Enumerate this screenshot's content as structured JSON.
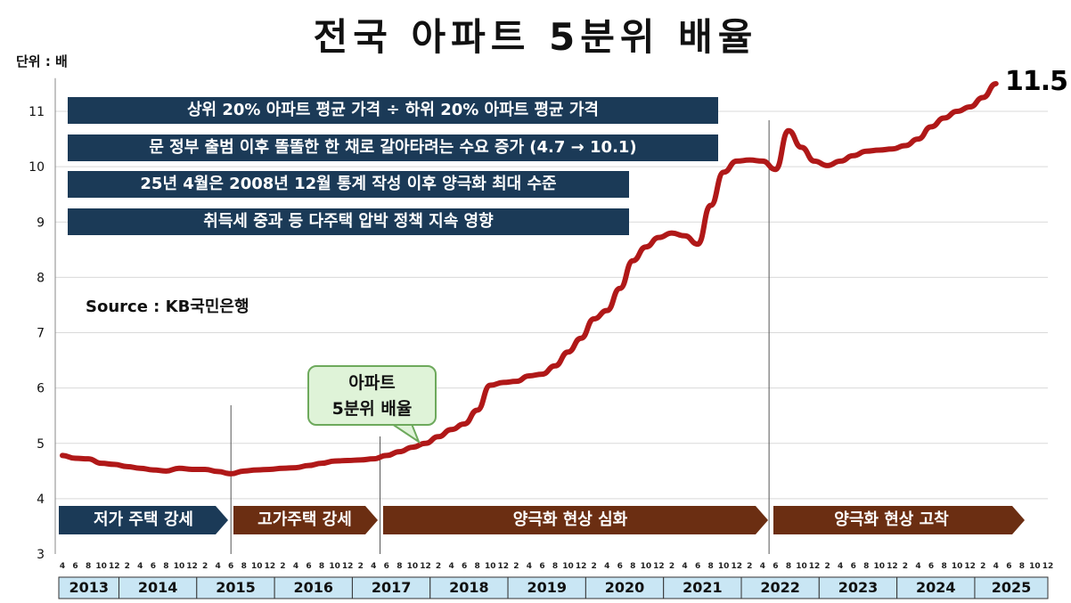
{
  "title": "전국 아파트 5분위 배율",
  "unit_label": "단위 : 배",
  "info_lines": [
    "상위 20% 아파트 평균 가격 ÷ 하위 20% 아파트 평균 가격",
    "문 정부 출범 이후 똘똘한 한 채로 갈아타려는 수요 증가 (4.7 → 10.1)",
    "25년 4월은 2008년 12월 통계 작성 이후 양극화 최대 수준",
    "취득세 중과 등 다주택 압박 정책 지속 영향"
  ],
  "source": "Source  : KB국민은행",
  "callout": {
    "line1": "아파트",
    "line2": "5분위 배율"
  },
  "end_value_label": "11.5",
  "phases": [
    {
      "label": "저가 주택 강세",
      "color": "#1b3a57"
    },
    {
      "label": "고가주택 강세",
      "color": "#6b2e12"
    },
    {
      "label": "양극화 현상 심화",
      "color": "#6b2e12"
    },
    {
      "label": "양극화 현상 고착",
      "color": "#6b2e12"
    }
  ],
  "colors": {
    "line": "#b01818",
    "info_bg": "#1b3a57",
    "year_bg": "#c9e6f4",
    "grid": "#d9d9d9"
  },
  "chart_data": {
    "type": "line",
    "title": "전국 아파트 5분위 배율",
    "ylabel": "단위 : 배",
    "ylim": [
      3,
      11.5
    ],
    "yticks": [
      3,
      4,
      5,
      6,
      7,
      8,
      9,
      10,
      11
    ],
    "x_month_ticks": [
      "4",
      "6",
      "8",
      "10",
      "12",
      "2",
      "4",
      "6",
      "8",
      "10",
      "12",
      "2",
      "4",
      "6",
      "8",
      "10",
      "12",
      "2",
      "4",
      "6",
      "8",
      "10",
      "12",
      "2",
      "4",
      "6",
      "8",
      "10",
      "12",
      "2",
      "4",
      "6",
      "8",
      "10",
      "12",
      "2",
      "4",
      "6",
      "8",
      "10",
      "12",
      "2",
      "4",
      "6",
      "8",
      "10",
      "12",
      "2",
      "4",
      "6",
      "8",
      "10",
      "12",
      "2",
      "4",
      "6",
      "8",
      "10",
      "12",
      "2",
      "4",
      "6",
      "8",
      "10",
      "12",
      "2",
      "4",
      "6",
      "8",
      "10",
      "12",
      "2",
      "4",
      "6",
      "8",
      "10",
      "12"
    ],
    "years": [
      "2013",
      "2014",
      "2015",
      "2016",
      "2017",
      "2018",
      "2019",
      "2020",
      "2021",
      "2022",
      "2023",
      "2024",
      "2025"
    ],
    "vlines": [
      "2015-06",
      "2017-05",
      "2022-05"
    ],
    "series": [
      {
        "x": [
          "2013-04",
          "2013-06",
          "2013-08",
          "2013-10",
          "2013-12",
          "2014-02",
          "2014-04",
          "2014-06",
          "2014-08",
          "2014-10",
          "2014-12",
          "2015-02",
          "2015-04",
          "2015-06",
          "2015-08",
          "2015-10",
          "2015-12",
          "2016-02",
          "2016-04",
          "2016-06",
          "2016-08",
          "2016-10",
          "2016-12",
          "2017-02",
          "2017-04",
          "2017-06",
          "2017-08",
          "2017-10",
          "2017-12",
          "2018-02",
          "2018-04",
          "2018-06",
          "2018-08",
          "2018-10",
          "2018-12",
          "2019-02",
          "2019-04",
          "2019-06",
          "2019-08",
          "2019-10",
          "2019-12",
          "2020-02",
          "2020-04",
          "2020-06",
          "2020-08",
          "2020-10",
          "2020-12",
          "2021-02",
          "2021-04",
          "2021-06",
          "2021-08",
          "2021-10",
          "2021-12",
          "2022-02",
          "2022-04",
          "2022-06",
          "2022-08",
          "2022-10",
          "2022-12",
          "2023-02",
          "2023-04",
          "2023-06",
          "2023-08",
          "2023-10",
          "2023-12",
          "2024-02",
          "2024-04",
          "2024-06",
          "2024-08",
          "2024-10",
          "2024-12",
          "2025-02",
          "2025-04"
        ],
        "values": [
          4.78,
          4.73,
          4.72,
          4.64,
          4.62,
          4.58,
          4.55,
          4.52,
          4.5,
          4.55,
          4.53,
          4.53,
          4.49,
          4.45,
          4.5,
          4.52,
          4.53,
          4.55,
          4.56,
          4.6,
          4.64,
          4.68,
          4.69,
          4.7,
          4.72,
          4.78,
          4.85,
          4.93,
          5.0,
          5.12,
          5.25,
          5.35,
          5.6,
          6.05,
          6.1,
          6.12,
          6.22,
          6.25,
          6.4,
          6.65,
          6.9,
          7.25,
          7.4,
          7.8,
          8.3,
          8.55,
          8.72,
          8.8,
          8.75,
          8.6,
          9.3,
          9.9,
          10.1,
          10.12,
          10.1,
          9.95,
          10.65,
          10.35,
          10.1,
          10.02,
          10.1,
          10.2,
          10.28,
          10.3,
          10.32,
          10.38,
          10.5,
          10.72,
          10.88,
          11.0,
          11.08,
          11.25,
          11.5
        ]
      }
    ]
  }
}
